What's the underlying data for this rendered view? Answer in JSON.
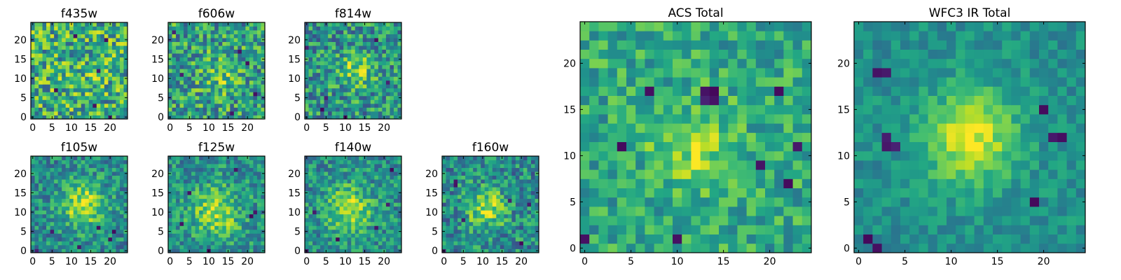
{
  "figure": {
    "description_colormap": "viridis",
    "colors": {
      "low": "#440154",
      "mid": "#21918c",
      "high": "#fde725",
      "frame": "#000000",
      "text": "#000000"
    }
  },
  "chart_data": [
    {
      "id": "f435w",
      "type": "heatmap",
      "title": "f435w",
      "grid_size": 25,
      "xticks": [
        0,
        5,
        10,
        15,
        20
      ],
      "yticks": [
        0,
        5,
        10,
        15,
        20
      ],
      "xlim": [
        0,
        24
      ],
      "ylim": [
        0,
        24
      ],
      "seed": 11,
      "peak": 0.05,
      "noise": 0.33,
      "base": 0.62,
      "center": [
        13,
        12
      ],
      "sigma": 4.0,
      "dark_spots": [
        [
          11,
          21
        ],
        [
          19,
          20
        ],
        [
          17,
          12
        ],
        [
          16,
          3
        ],
        [
          20,
          0
        ],
        [
          6,
          7
        ]
      ]
    },
    {
      "id": "f606w",
      "type": "heatmap",
      "title": "f606w",
      "grid_size": 25,
      "xticks": [
        0,
        5,
        10,
        15,
        20
      ],
      "yticks": [
        0,
        5,
        10,
        15,
        20
      ],
      "xlim": [
        0,
        24
      ],
      "ylim": [
        0,
        24
      ],
      "seed": 23,
      "peak": 0.18,
      "noise": 0.3,
      "base": 0.56,
      "center": [
        13,
        11
      ],
      "sigma": 3.5,
      "dark_spots": [
        [
          1,
          22
        ],
        [
          20,
          14
        ],
        [
          3,
          11
        ],
        [
          18,
          17
        ],
        [
          22,
          6
        ],
        [
          16,
          1
        ]
      ]
    },
    {
      "id": "f814w",
      "type": "heatmap",
      "title": "f814w",
      "grid_size": 25,
      "xticks": [
        0,
        5,
        10,
        15,
        20
      ],
      "yticks": [
        0,
        5,
        10,
        15,
        20
      ],
      "xlim": [
        0,
        24
      ],
      "ylim": [
        0,
        24
      ],
      "seed": 37,
      "peak": 0.3,
      "noise": 0.28,
      "base": 0.52,
      "center": [
        13,
        12
      ],
      "sigma": 3.0,
      "dark_spots": [
        [
          0,
          18
        ],
        [
          21,
          9
        ],
        [
          5,
          5
        ],
        [
          10,
          0
        ],
        [
          18,
          20
        ],
        [
          4,
          2
        ]
      ]
    },
    {
      "id": "f105w",
      "type": "heatmap",
      "title": "f105w",
      "grid_size": 25,
      "xticks": [
        0,
        5,
        10,
        15,
        20
      ],
      "yticks": [
        0,
        5,
        10,
        15,
        20
      ],
      "xlim": [
        0,
        24
      ],
      "ylim": [
        0,
        24
      ],
      "seed": 41,
      "peak": 0.42,
      "noise": 0.22,
      "base": 0.48,
      "center": [
        13,
        12
      ],
      "sigma": 4.0,
      "dark_spots": [
        [
          17,
          6
        ],
        [
          21,
          5
        ],
        [
          20,
          3
        ],
        [
          1,
          0
        ],
        [
          5,
          5
        ],
        [
          12,
          1
        ]
      ]
    },
    {
      "id": "f125w",
      "type": "heatmap",
      "title": "f125w",
      "grid_size": 25,
      "xticks": [
        0,
        5,
        10,
        15,
        20
      ],
      "yticks": [
        0,
        5,
        10,
        15,
        20
      ],
      "xlim": [
        0,
        24
      ],
      "ylim": [
        0,
        24
      ],
      "seed": 53,
      "peak": 0.36,
      "noise": 0.22,
      "base": 0.5,
      "center": [
        12,
        10
      ],
      "sigma": 4.5,
      "dark_spots": [
        [
          22,
          10
        ],
        [
          21,
          9
        ],
        [
          5,
          15
        ],
        [
          17,
          21
        ],
        [
          10,
          0
        ],
        [
          3,
          7
        ]
      ]
    },
    {
      "id": "f140w",
      "type": "heatmap",
      "title": "f140w",
      "grid_size": 25,
      "xticks": [
        0,
        5,
        10,
        15,
        20
      ],
      "yticks": [
        0,
        5,
        10,
        15,
        20
      ],
      "xlim": [
        0,
        24
      ],
      "ylim": [
        0,
        24
      ],
      "seed": 61,
      "peak": 0.38,
      "noise": 0.22,
      "base": 0.5,
      "center": [
        11,
        11
      ],
      "sigma": 4.0,
      "dark_spots": [
        [
          22,
          21
        ],
        [
          21,
          12
        ],
        [
          2,
          10
        ],
        [
          18,
          6
        ],
        [
          8,
          3
        ],
        [
          0,
          0
        ]
      ]
    },
    {
      "id": "f160w",
      "type": "heatmap",
      "title": "f160w",
      "grid_size": 25,
      "xticks": [
        0,
        5,
        10,
        15,
        20
      ],
      "yticks": [
        0,
        5,
        10,
        15,
        20
      ],
      "xlim": [
        0,
        24
      ],
      "ylim": [
        0,
        24
      ],
      "seed": 73,
      "peak": 0.4,
      "noise": 0.25,
      "base": 0.48,
      "center": [
        11,
        11
      ],
      "sigma": 3.5,
      "dark_spots": [
        [
          3,
          18
        ],
        [
          3,
          17
        ],
        [
          22,
          12
        ],
        [
          17,
          13
        ],
        [
          5,
          8
        ],
        [
          20,
          2
        ],
        [
          0,
          0
        ]
      ]
    },
    {
      "id": "acs_total",
      "type": "heatmap",
      "title": "ACS Total",
      "grid_size": 25,
      "xticks": [
        0,
        5,
        10,
        15,
        20
      ],
      "yticks": [
        0,
        5,
        10,
        15,
        20
      ],
      "xlim": [
        0,
        24
      ],
      "ylim": [
        0,
        24
      ],
      "seed": 89,
      "peak": 0.28,
      "noise": 0.2,
      "base": 0.6,
      "center": [
        12,
        11
      ],
      "sigma": 3.0,
      "dark_spots": [
        [
          14,
          16
        ],
        [
          13,
          16
        ],
        [
          14,
          17
        ],
        [
          13,
          17
        ],
        [
          7,
          17
        ],
        [
          19,
          9
        ],
        [
          23,
          11
        ],
        [
          4,
          11
        ],
        [
          0,
          1
        ],
        [
          10,
          1
        ],
        [
          21,
          17
        ],
        [
          22,
          7
        ]
      ]
    },
    {
      "id": "wfc3_ir_total",
      "type": "heatmap",
      "title": "WFC3 IR Total",
      "grid_size": 25,
      "xticks": [
        0,
        5,
        10,
        15,
        20
      ],
      "yticks": [
        0,
        5,
        10,
        15,
        20
      ],
      "xlim": [
        0,
        24
      ],
      "ylim": [
        0,
        24
      ],
      "seed": 97,
      "peak": 0.45,
      "noise": 0.12,
      "base": 0.5,
      "center": [
        12,
        12
      ],
      "sigma": 3.5,
      "dark_spots": [
        [
          2,
          19
        ],
        [
          3,
          19
        ],
        [
          3,
          12
        ],
        [
          4,
          11
        ],
        [
          3,
          11
        ],
        [
          21,
          12
        ],
        [
          22,
          12
        ],
        [
          20,
          15
        ],
        [
          19,
          5
        ],
        [
          2,
          0
        ],
        [
          1,
          1
        ]
      ]
    }
  ]
}
